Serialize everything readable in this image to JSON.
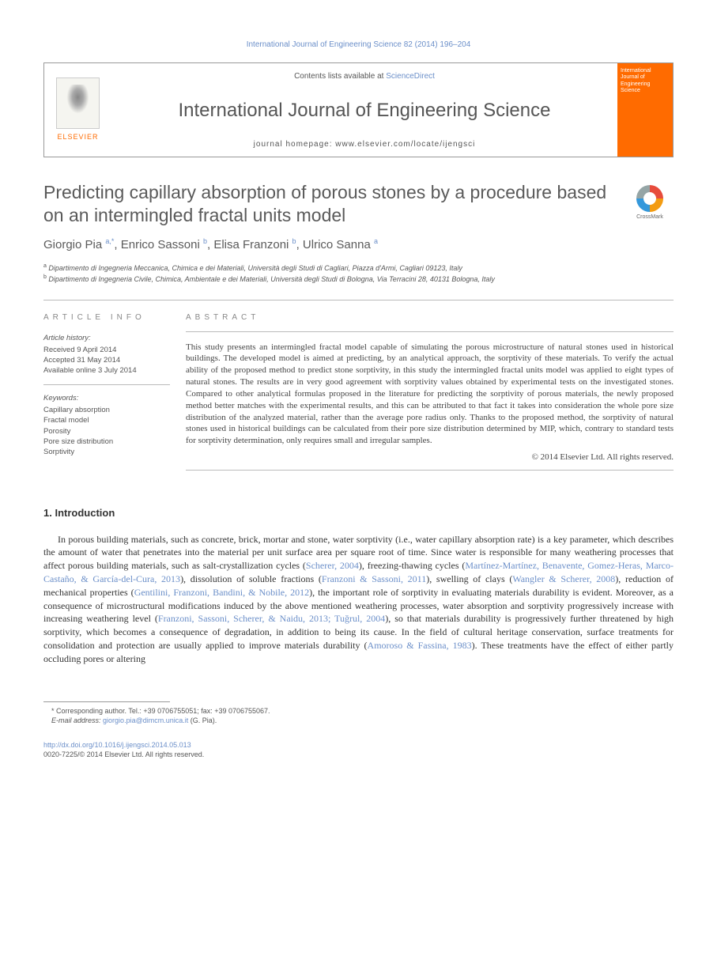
{
  "top_citation": "International Journal of Engineering Science 82 (2014) 196–204",
  "header": {
    "contents_prefix": "Contents lists available at ",
    "contents_link": "ScienceDirect",
    "journal_name": "International Journal of Engineering Science",
    "homepage_label": "journal homepage: www.elsevier.com/locate/ijengsci",
    "elsevier_label": "ELSEVIER",
    "cover_title": "International Journal of Engineering Science"
  },
  "title": "Predicting capillary absorption of porous stones by a procedure based on an intermingled fractal units model",
  "crossmark_label": "CrossMark",
  "authors": [
    {
      "name": "Giorgio Pia",
      "marks": "a,*"
    },
    {
      "name": "Enrico Sassoni",
      "marks": "b"
    },
    {
      "name": "Elisa Franzoni",
      "marks": "b"
    },
    {
      "name": "Ulrico Sanna",
      "marks": "a"
    }
  ],
  "affiliations": [
    {
      "mark": "a",
      "text": "Dipartimento di Ingegneria Meccanica, Chimica e dei Materiali, Università degli Studi di Cagliari, Piazza d'Armi, Cagliari 09123, Italy"
    },
    {
      "mark": "b",
      "text": "Dipartimento di Ingegneria Civile, Chimica, Ambientale e dei Materiali, Università degli Studi di Bologna, Via Terracini 28, 40131 Bologna, Italy"
    }
  ],
  "article_info": {
    "heading": "article info",
    "history_label": "Article history:",
    "received": "Received 9 April 2014",
    "accepted": "Accepted 31 May 2014",
    "online": "Available online 3 July 2014",
    "keywords_label": "Keywords:",
    "keywords": [
      "Capillary absorption",
      "Fractal model",
      "Porosity",
      "Pore size distribution",
      "Sorptivity"
    ]
  },
  "abstract": {
    "heading": "abstract",
    "text": "This study presents an intermingled fractal model capable of simulating the porous microstructure of natural stones used in historical buildings. The developed model is aimed at predicting, by an analytical approach, the sorptivity of these materials. To verify the actual ability of the proposed method to predict stone sorptivity, in this study the intermingled fractal units model was applied to eight types of natural stones. The results are in very good agreement with sorptivity values obtained by experimental tests on the investigated stones. Compared to other analytical formulas proposed in the literature for predicting the sorptivity of porous materials, the newly proposed method better matches with the experimental results, and this can be attributed to that fact it takes into consideration the whole pore size distribution of the analyzed material, rather than the average pore radius only. Thanks to the proposed method, the sorptivity of natural stones used in historical buildings can be calculated from their pore size distribution determined by MIP, which, contrary to standard tests for sorptivity determination, only requires small and irregular samples.",
    "copyright": "© 2014 Elsevier Ltd. All rights reserved."
  },
  "section1": {
    "heading": "1. Introduction",
    "para1_parts": [
      "In porous building materials, such as concrete, brick, mortar and stone, water sorptivity (i.e., water capillary absorption rate) is a key parameter, which describes the amount of water that penetrates into the material per unit surface area per square root of time. Since water is responsible for many weathering processes that affect porous building materials, such as salt-crystallization cycles (",
      "Scherer, 2004",
      "), freezing-thawing cycles (",
      "Martínez-Martínez, Benavente, Gomez-Heras, Marco-Castaño, & García-del-Cura, 2013",
      "), dissolution of soluble fractions (",
      "Franzoni & Sassoni, 2011",
      "), swelling of clays (",
      "Wangler & Scherer, 2008",
      "), reduction of mechanical properties (",
      "Gentilini, Franzoni, Bandini, & Nobile, 2012",
      "), the important role of sorptivity in evaluating materials durability is evident. Moreover, as a consequence of microstructural modifications induced by the above mentioned weathering processes, water absorption and sorptivity progressively increase with increasing weathering level (",
      "Franzoni, Sassoni, Scherer, & Naidu, 2013; Tuğrul, 2004",
      "), so that materials durability is progressively further threatened by high sorptivity, which becomes a consequence of degradation, in addition to being its cause. In the field of cultural heritage conservation, surface treatments for consolidation and protection are usually applied to improve materials durability (",
      "Amoroso & Fassina, 1983",
      "). These treatments have the effect of either partly occluding pores or altering"
    ]
  },
  "footnote": {
    "corr": "* Corresponding author. Tel.: +39 0706755051; fax: +39 0706755067.",
    "email_label": "E-mail address:",
    "email": "giorgio.pia@dimcm.unica.it",
    "email_who": "(G. Pia)."
  },
  "doi": {
    "url": "http://dx.doi.org/10.1016/j.ijengsci.2014.05.013",
    "issn_line": "0020-7225/© 2014 Elsevier Ltd. All rights reserved."
  },
  "colors": {
    "link": "#6b8fc9",
    "elsevier_orange": "#ff6b00",
    "heading_gray": "#5a5a5a",
    "border": "#bbbbbb"
  }
}
